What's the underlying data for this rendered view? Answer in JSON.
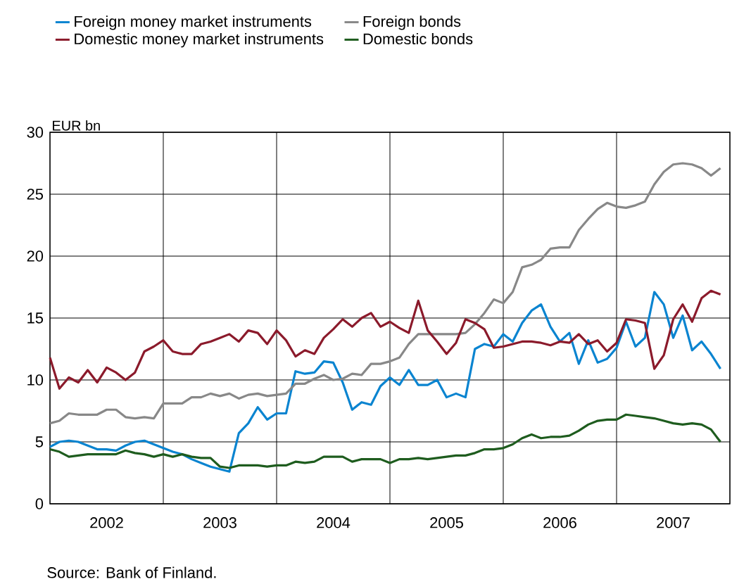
{
  "chart_data": {
    "type": "line",
    "ylabel": "EUR bn",
    "x": [
      "2002-01",
      "2002-02",
      "2002-03",
      "2002-04",
      "2002-05",
      "2002-06",
      "2002-07",
      "2002-08",
      "2002-09",
      "2002-10",
      "2002-11",
      "2002-12",
      "2003-01",
      "2003-02",
      "2003-03",
      "2003-04",
      "2003-05",
      "2003-06",
      "2003-07",
      "2003-08",
      "2003-09",
      "2003-10",
      "2003-11",
      "2003-12",
      "2004-01",
      "2004-02",
      "2004-03",
      "2004-04",
      "2004-05",
      "2004-06",
      "2004-07",
      "2004-08",
      "2004-09",
      "2004-10",
      "2004-11",
      "2004-12",
      "2005-01",
      "2005-02",
      "2005-03",
      "2005-04",
      "2005-05",
      "2005-06",
      "2005-07",
      "2005-08",
      "2005-09",
      "2005-10",
      "2005-11",
      "2005-12",
      "2006-01",
      "2006-02",
      "2006-03",
      "2006-04",
      "2006-05",
      "2006-06",
      "2006-07",
      "2006-08",
      "2006-09",
      "2006-10",
      "2006-11",
      "2006-12",
      "2007-01",
      "2007-02",
      "2007-03",
      "2007-04",
      "2007-05",
      "2007-06",
      "2007-07",
      "2007-08",
      "2007-09",
      "2007-10",
      "2007-11",
      "2007-12"
    ],
    "series": [
      {
        "name": "Foreign money market instruments",
        "color": "#0a84d0",
        "values": [
          4.6,
          5.0,
          5.1,
          5.0,
          4.7,
          4.4,
          4.4,
          4.3,
          4.7,
          5.0,
          5.1,
          4.8,
          4.5,
          4.2,
          4.0,
          3.6,
          3.3,
          3.0,
          2.8,
          2.6,
          5.7,
          6.5,
          7.8,
          6.8,
          7.3,
          7.3,
          10.7,
          10.5,
          10.6,
          11.5,
          11.4,
          9.8,
          7.6,
          8.2,
          8.0,
          9.5,
          10.2,
          9.6,
          10.8,
          9.6,
          9.6,
          10.0,
          8.6,
          8.9,
          8.6,
          12.5,
          12.9,
          12.7,
          13.7,
          13.1,
          14.6,
          15.6,
          16.1,
          14.3,
          13.1,
          13.8,
          11.3,
          13.2,
          11.4,
          11.7,
          12.6,
          14.7,
          12.7,
          13.4,
          17.1,
          16.1,
          13.4,
          15.2,
          12.4,
          13.1,
          12.1,
          10.9
        ]
      },
      {
        "name": "Foreign bonds",
        "color": "#888888",
        "values": [
          6.5,
          6.7,
          7.3,
          7.2,
          7.2,
          7.2,
          7.6,
          7.6,
          7.0,
          6.9,
          7.0,
          6.9,
          8.1,
          8.1,
          8.1,
          8.6,
          8.6,
          8.9,
          8.7,
          8.9,
          8.5,
          8.8,
          8.9,
          8.7,
          8.8,
          8.9,
          9.7,
          9.7,
          10.1,
          10.4,
          10.0,
          10.1,
          10.5,
          10.4,
          11.3,
          11.3,
          11.5,
          11.8,
          12.9,
          13.7,
          13.7,
          13.7,
          13.7,
          13.7,
          13.8,
          14.5,
          15.4,
          16.5,
          16.2,
          17.1,
          19.1,
          19.3,
          19.7,
          20.6,
          20.7,
          20.7,
          22.1,
          23.0,
          23.8,
          24.3,
          24.0,
          23.9,
          24.1,
          24.4,
          25.8,
          26.8,
          27.4,
          27.5,
          27.4,
          27.1,
          26.5,
          27.1
        ]
      },
      {
        "name": "Domestic money market instruments",
        "color": "#8b1a2b",
        "values": [
          11.8,
          9.3,
          10.2,
          9.8,
          10.8,
          9.8,
          11.0,
          10.6,
          10.0,
          10.6,
          12.3,
          12.7,
          13.2,
          12.3,
          12.1,
          12.1,
          12.9,
          13.1,
          13.4,
          13.7,
          13.1,
          14.0,
          13.8,
          12.9,
          14.0,
          13.2,
          11.9,
          12.4,
          12.1,
          13.4,
          14.1,
          14.9,
          14.3,
          15.0,
          15.4,
          14.3,
          14.7,
          14.2,
          13.8,
          16.4,
          14.0,
          13.1,
          12.1,
          13.0,
          14.9,
          14.6,
          14.1,
          12.6,
          12.7,
          12.9,
          13.1,
          13.1,
          13.0,
          12.8,
          13.1,
          13.0,
          13.7,
          12.9,
          13.2,
          12.3,
          13.0,
          14.9,
          14.8,
          14.6,
          10.9,
          12.0,
          14.9,
          16.1,
          14.7,
          16.6,
          17.2,
          16.9
        ]
      },
      {
        "name": "Domestic bonds",
        "color": "#1e5c1e",
        "values": [
          4.4,
          4.2,
          3.8,
          3.9,
          4.0,
          4.0,
          4.0,
          4.0,
          4.3,
          4.1,
          4.0,
          3.8,
          4.0,
          3.8,
          4.0,
          3.8,
          3.7,
          3.7,
          3.0,
          2.9,
          3.1,
          3.1,
          3.1,
          3.0,
          3.1,
          3.1,
          3.4,
          3.3,
          3.4,
          3.8,
          3.8,
          3.8,
          3.4,
          3.6,
          3.6,
          3.6,
          3.3,
          3.6,
          3.6,
          3.7,
          3.6,
          3.7,
          3.8,
          3.9,
          3.9,
          4.1,
          4.4,
          4.4,
          4.5,
          4.8,
          5.3,
          5.6,
          5.3,
          5.4,
          5.4,
          5.5,
          5.9,
          6.4,
          6.7,
          6.8,
          6.8,
          7.2,
          7.1,
          7.0,
          6.9,
          6.7,
          6.5,
          6.4,
          6.5,
          6.4,
          6.0,
          5.0
        ]
      }
    ],
    "xlim": [
      "2002",
      "2008"
    ],
    "xticks": [
      {
        "value": "2002-07",
        "label": "2002"
      },
      {
        "value": "2003",
        "label": null
      },
      {
        "value": "2003-07",
        "label": "2003"
      },
      {
        "value": "2004",
        "label": null
      },
      {
        "value": "2004-07",
        "label": "2004"
      },
      {
        "value": "2005",
        "label": null
      },
      {
        "value": "2005-07",
        "label": "2005"
      },
      {
        "value": "2006",
        "label": null
      },
      {
        "value": "2006-07",
        "label": "2006"
      },
      {
        "value": "2007",
        "label": null
      },
      {
        "value": "2007-07",
        "label": "2007"
      }
    ],
    "ylim": [
      0,
      30
    ],
    "yticks": [
      0,
      5,
      10,
      15,
      20,
      25,
      30
    ],
    "grid": true,
    "legend": "top",
    "annotations": [
      "Source: Bank of Finland."
    ]
  }
}
